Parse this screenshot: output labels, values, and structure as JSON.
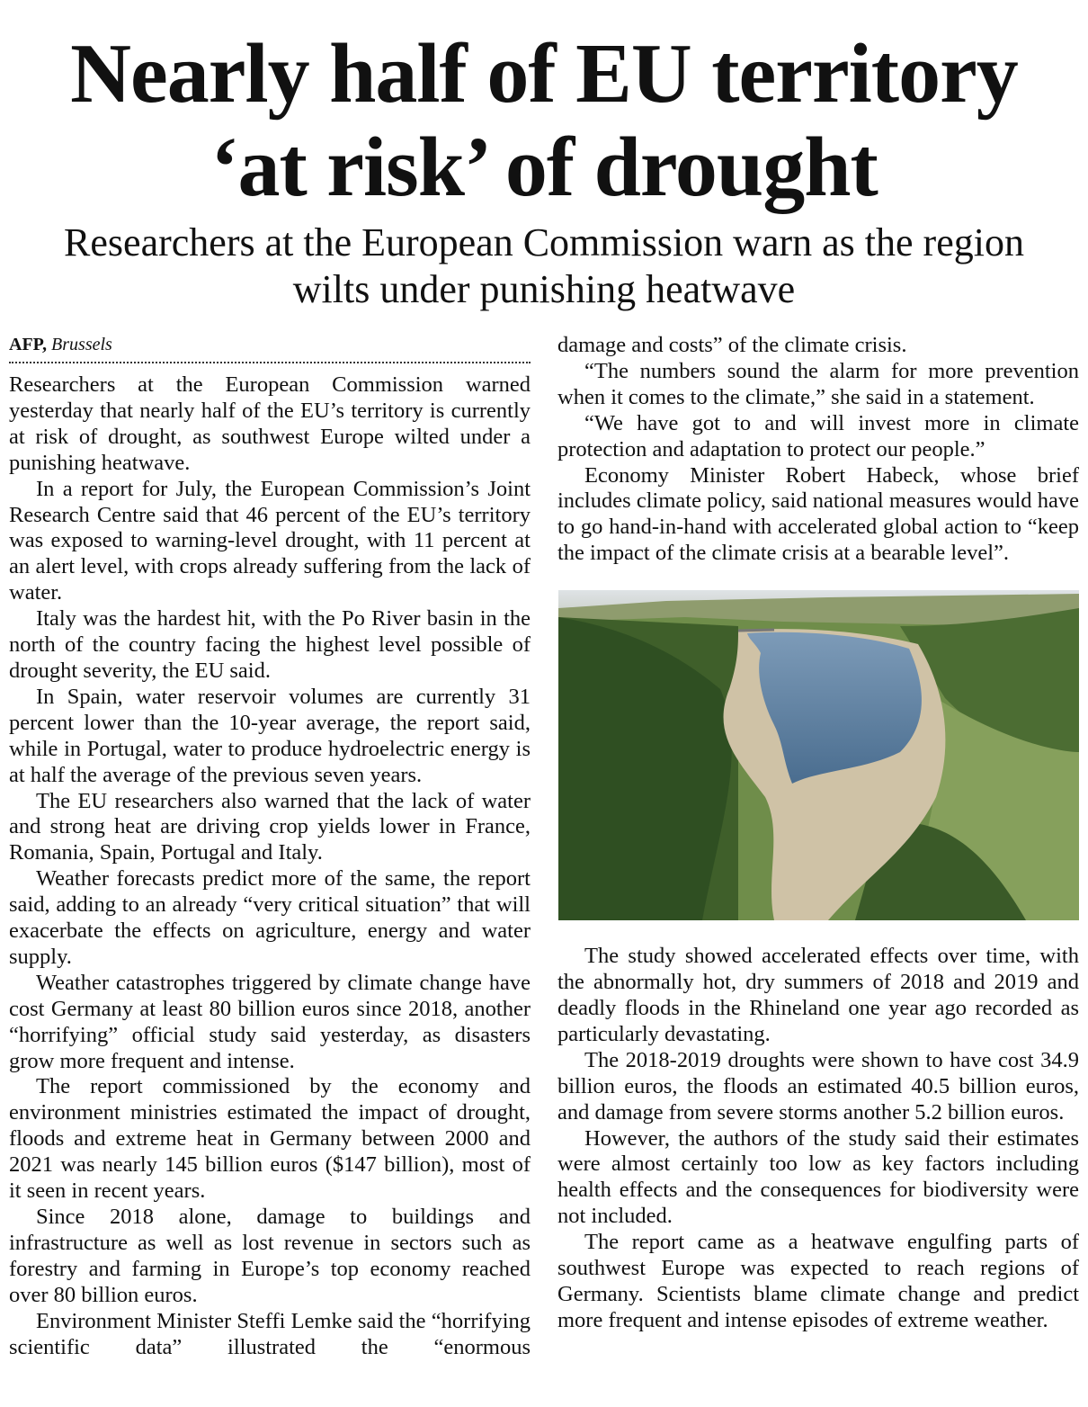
{
  "headline": {
    "line1": "Nearly half of EU territory",
    "line2": "‘at risk’ of drought"
  },
  "subhead": {
    "line1": "Researchers at the European Commission warn as the region",
    "line2": "wilts under punishing heatwave"
  },
  "byline": {
    "agency": "AFP,",
    "place": "Brussels"
  },
  "left_paragraphs": [
    "Researchers at the European Commission warned yesterday that nearly half of the EU’s territory is currently at risk of drought, as southwest Europe wilted under a punishing heatwave.",
    "In a report for July, the European Commission’s Joint Research Centre said that 46 percent of the EU’s territory was exposed to warning-level drought, with 11 percent at an alert level, with crops already suffering from the lack of water.",
    "Italy was the hardest hit, with the Po River basin in the north of the country facing the highest level possible of drought severity, the EU said.",
    "In Spain, water reservoir volumes are currently 31 percent lower than the 10-year average, the report said, while in Portugal, water to produce hydroelectric energy is at half the average of the previous seven years.",
    "The EU researchers also warned that the lack of water and strong heat are driving crop yields lower in France, Romania, Spain, Portugal and Italy.",
    "Weather forecasts predict more of the same, the report said, adding to an already “very critical situation” that will exacerbate the effects on agriculture, energy and water supply.",
    "Weather catastrophes triggered by climate change have cost Germany at least 80 billion euros since 2018, another “horrifying” official study said yesterday, as disasters grow more frequent and intense.",
    "The report commissioned by the economy and environment ministries estimated the impact of drought, floods and extreme heat in Germany between 2000 and 2021 was nearly 145 billion euros ($147 billion), most of it seen in recent years.",
    "Since 2018 alone, damage to buildings and infrastructure as well as lost revenue in sectors such as forestry and farming in Europe’s top economy reached over 80 billion euros.",
    "Environment Minister Steffi Lemke said the “horrifying scientific data” illustrated the “enormous"
  ],
  "right_top_paragraphs": [
    "damage and costs” of the climate crisis.",
    "“The numbers sound the alarm for more prevention when it comes to the climate,” she said in a statement.",
    "“We have got to and will invest more in climate protection and adaptation to protect our people.”",
    "Economy Minister Robert Habeck, whose brief includes climate policy, said national measures would have to go hand-in-hand with accelerated global action to “keep the impact of the climate crisis at a bearable level”."
  ],
  "right_bottom_paragraphs": [
    "The study showed accelerated effects over time, with the abnormally hot, dry summers of 2018 and 2019 and deadly floods in the Rhineland one year ago recorded as particularly devastating.",
    "The 2018-2019 droughts were shown to have cost 34.9 billion euros, the floods an estimated 40.5 billion euros, and damage from severe storms another 5.2 billion euros.",
    "However, the authors of the study said their estimates were almost certainly too low as key factors including health effects and the consequences for biodiversity were not included.",
    "The report came as a heatwave engulfing parts of southwest Europe was expected to reach regions of Germany. Scientists blame climate change and predict more frequent and intense episodes of extreme weather."
  ]
}
